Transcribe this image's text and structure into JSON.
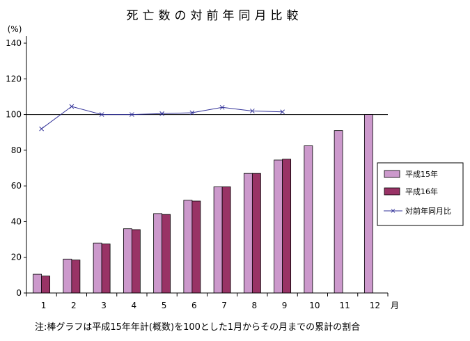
{
  "chart_data": {
    "type": "bar",
    "title": "死亡数の対前年同月比較",
    "ylabel": "(%)",
    "xlabel": "月",
    "ylim": [
      0,
      140
    ],
    "y_ticks": [
      0,
      20,
      40,
      60,
      80,
      100,
      120,
      140
    ],
    "categories": [
      "1",
      "2",
      "3",
      "4",
      "5",
      "6",
      "7",
      "8",
      "9",
      "10",
      "11",
      "12"
    ],
    "series": [
      {
        "name": "平成15年",
        "kind": "bar",
        "color": "#cc99cc",
        "values": [
          10.5,
          19,
          28,
          36,
          44.5,
          52,
          59.5,
          67,
          74.5,
          82.5,
          91,
          100
        ]
      },
      {
        "name": "平成16年",
        "kind": "bar",
        "color": "#993366",
        "values": [
          9.5,
          18.5,
          27.5,
          35.5,
          44,
          51.5,
          59.5,
          67,
          75,
          null,
          null,
          null
        ]
      },
      {
        "name": "対前年同月比",
        "kind": "line",
        "color": "#333399",
        "values": [
          92,
          104.5,
          100,
          100,
          100.5,
          101,
          104,
          102,
          101.5,
          null,
          null,
          null
        ]
      }
    ],
    "reference_line": 100,
    "legend_position": "right",
    "note": "注:棒グラフは平成15年年計(概数)を100とした1月からその月までの累計の割合"
  }
}
